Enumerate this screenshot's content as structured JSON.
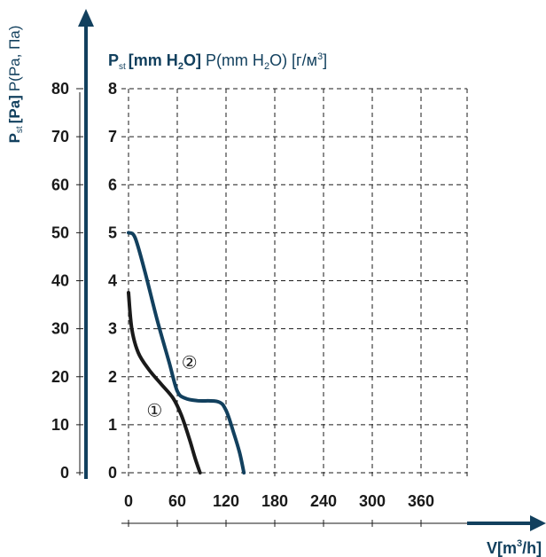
{
  "chart_data": {
    "type": "line",
    "y_label_left": {
      "bold": "P",
      "sub": "st",
      "bold2": "[Pa]",
      "normal": "P(Pa, Па)"
    },
    "y_label_top": {
      "bold": "P",
      "sub": "st",
      "bold2": "[mm H",
      "sub2": "2",
      "bold3": "O]",
      "normal": "P(mm H",
      "sub3": "2",
      "normal2": "O) [г/м",
      "sup": "3",
      "normal3": "]"
    },
    "x_label": {
      "text": "V[m",
      "sup": "3",
      "text2": "/h]"
    },
    "y_ticks_pa": [
      "0",
      "10",
      "20",
      "30",
      "40",
      "50",
      "60",
      "70",
      "80"
    ],
    "y_ticks_mm": [
      "0",
      "1",
      "2",
      "3",
      "4",
      "5",
      "6",
      "7",
      "8"
    ],
    "x_ticks": [
      "0",
      "60",
      "120",
      "180",
      "240",
      "300",
      "360"
    ],
    "xlim": [
      0,
      360
    ],
    "ylim": [
      0,
      80
    ],
    "grid": true,
    "series": [
      {
        "name": "①",
        "color": "#1a1a1a",
        "points": [
          [
            0,
            37.5
          ],
          [
            4,
            30
          ],
          [
            12,
            25
          ],
          [
            25,
            21.5
          ],
          [
            40,
            18.5
          ],
          [
            55,
            15.5
          ],
          [
            65,
            12
          ],
          [
            75,
            7
          ],
          [
            82,
            3
          ],
          [
            88,
            0
          ]
        ]
      },
      {
        "name": "②",
        "color": "#12405e",
        "points": [
          [
            0,
            50
          ],
          [
            8,
            49
          ],
          [
            20,
            42
          ],
          [
            35,
            32
          ],
          [
            50,
            23
          ],
          [
            60,
            17
          ],
          [
            70,
            15.5
          ],
          [
            85,
            15
          ],
          [
            110,
            14.8
          ],
          [
            120,
            13
          ],
          [
            130,
            8
          ],
          [
            137,
            4
          ],
          [
            142,
            0
          ]
        ]
      }
    ],
    "annotations": [
      {
        "text": "①",
        "x": 32,
        "y": 13
      },
      {
        "text": "②",
        "x": 75,
        "y": 23
      }
    ]
  }
}
